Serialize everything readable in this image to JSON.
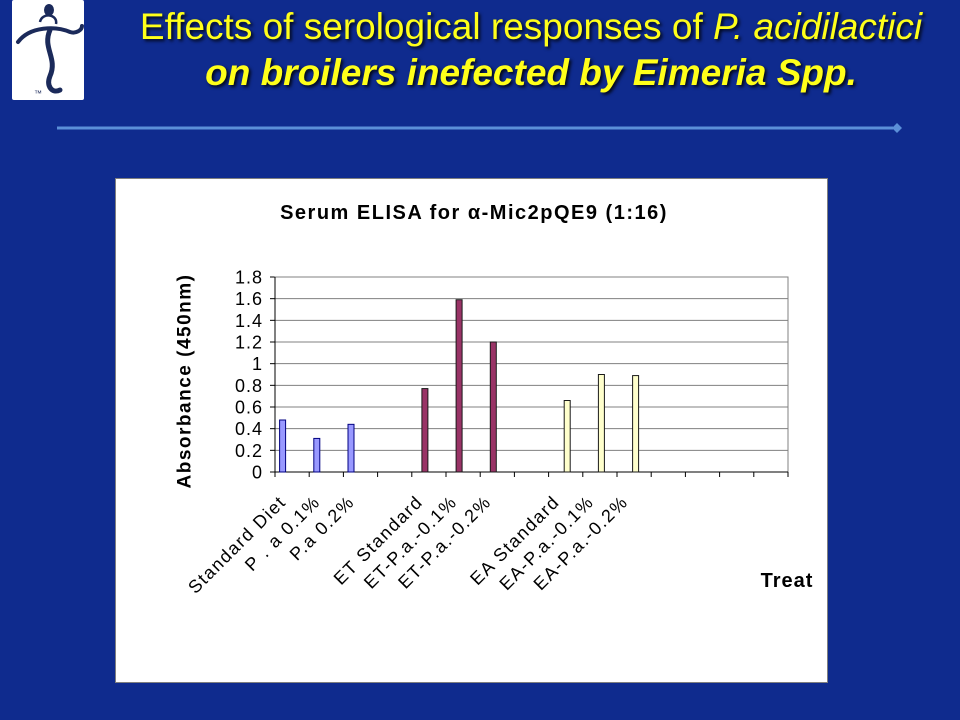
{
  "slide": {
    "logo": {
      "icon": "stylized-figure-logo-icon",
      "tm": "™"
    },
    "title": {
      "line1_plain": "Effects of serological responses of ",
      "line1_italic": "P. acidilactici",
      "line2": "on broilers inefected by Eimeria Spp."
    }
  },
  "colors": {
    "background": "#0f2b8e",
    "title": "#ffff1a",
    "rule": "#5b8fd8",
    "chart_panel": "#ffffff",
    "gridline": "#808080"
  },
  "chart_data": {
    "type": "bar",
    "title": "Serum ELISA for α-Mic2pQE9 (1:16)",
    "xlabel": "Treat",
    "ylabel": "Absorbance (450nm)",
    "ylim": [
      0,
      1.8
    ],
    "yticks": [
      "0",
      "0.2",
      "0.4",
      "0.6",
      "0.8",
      "1",
      "1.2",
      "1.4",
      "1.6",
      "1.8"
    ],
    "grid": true,
    "legend": "none",
    "categories": [
      "Standard Diet",
      "P . a 0.1%",
      "P.a 0.2%",
      "",
      "ET Standard",
      "ET-P.a.-0.1%",
      "ET-P.a.-0.2%",
      "",
      "EA Standard",
      "EA-P.a.-0.1%",
      "EA-P.a.-0.2%",
      "",
      "",
      "",
      ""
    ],
    "series": [
      {
        "color": "#9999ff",
        "edge": "#000080",
        "values": [
          0.48,
          0.31,
          0.44,
          null,
          null,
          null,
          null,
          null,
          null,
          null,
          null,
          null,
          null,
          null,
          null
        ]
      },
      {
        "color": "#993366",
        "edge": "#1a1a1a",
        "values": [
          null,
          null,
          null,
          null,
          0.77,
          1.59,
          1.2,
          null,
          null,
          null,
          null,
          null,
          null,
          null,
          null
        ]
      },
      {
        "color": "#ffffcc",
        "edge": "#1a1a1a",
        "values": [
          null,
          null,
          null,
          null,
          null,
          null,
          null,
          null,
          0.66,
          0.9,
          0.89,
          null,
          null,
          null,
          null
        ]
      }
    ]
  }
}
